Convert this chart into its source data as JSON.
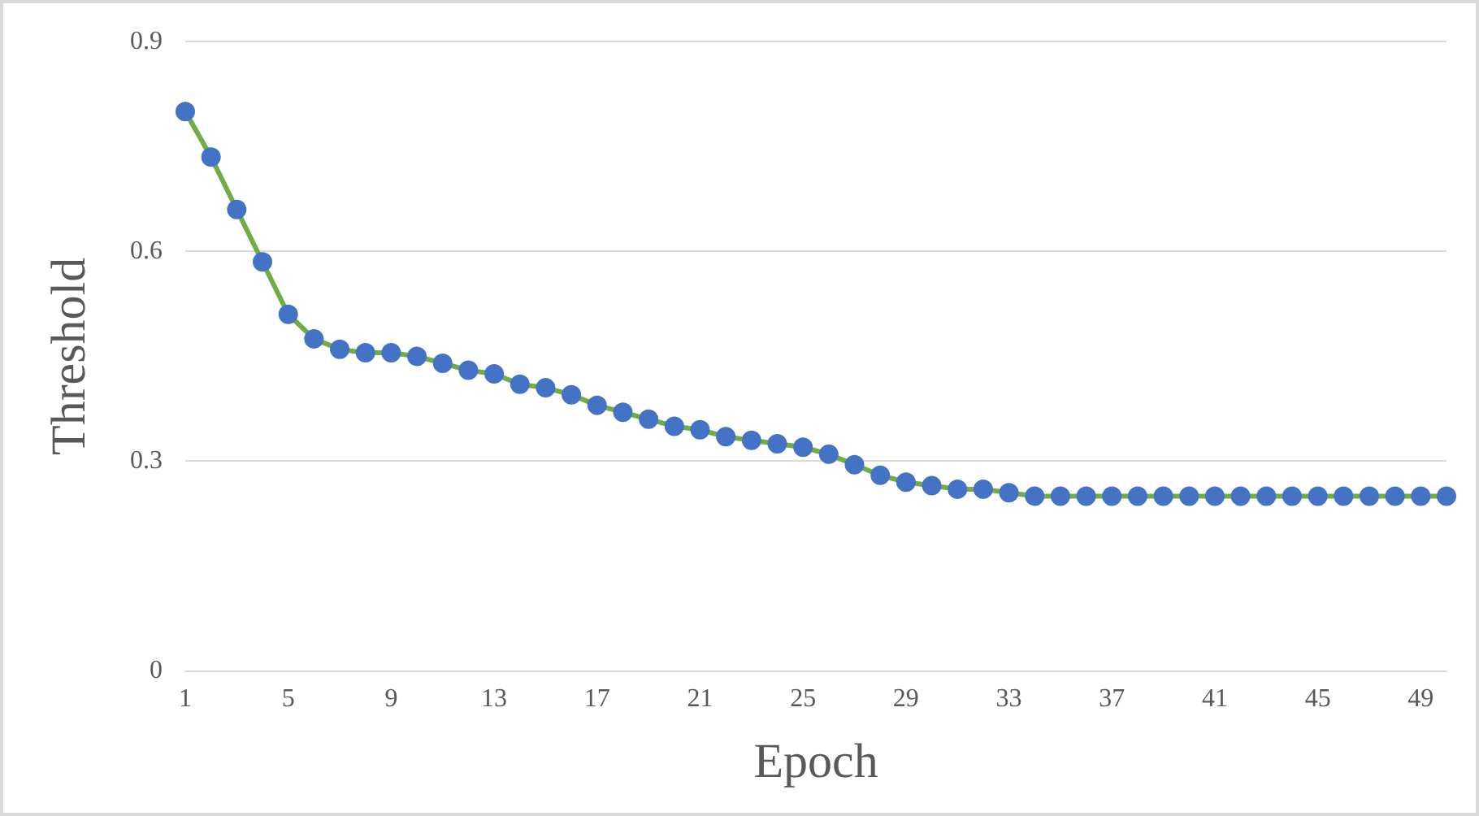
{
  "chart_data": {
    "type": "line",
    "xlabel": "Epoch",
    "ylabel": "Threshold",
    "categories": [
      "1",
      null,
      null,
      null,
      "5",
      null,
      null,
      null,
      "9",
      null,
      null,
      null,
      "13",
      null,
      null,
      null,
      "17",
      null,
      null,
      null,
      "21",
      null,
      null,
      null,
      "25",
      null,
      null,
      null,
      "29",
      null,
      null,
      null,
      "33",
      null,
      null,
      null,
      "37",
      null,
      null,
      null,
      "41",
      null,
      null,
      null,
      "45",
      null,
      null,
      null,
      "49",
      null
    ],
    "series": [
      {
        "color": "#70ad47",
        "colors": [
          "#4472c4",
          "#4472c4",
          "#4472c4",
          "#4472c4",
          "#4472c4",
          "#4472c4",
          "#4472c4",
          "#4472c4",
          "#4472c4",
          "#4472c4",
          "#4472c4",
          "#4472c4",
          "#4472c4",
          "#4472c4",
          "#4472c4",
          "#4472c4",
          "#4472c4",
          "#4472c4",
          "#4472c4",
          "#4472c4",
          "#4472c4",
          "#4472c4",
          "#4472c4",
          "#4472c4",
          "#4472c4",
          "#4472c4",
          "#4472c4",
          "#4472c4",
          "#4472c4",
          "#4472c4",
          "#4472c4",
          "#4472c4",
          "#4472c4",
          "#4472c4",
          "#4472c4",
          "#4472c4",
          "#4472c4",
          "#4472c4",
          "#4472c4",
          "#4472c4",
          "#4472c4",
          "#4472c4",
          "#4472c4",
          "#4472c4",
          "#4472c4",
          "#4472c4",
          "#4472c4",
          "#4472c4",
          "#4472c4",
          "#4472c4"
        ],
        "values": [
          0.8,
          0.735,
          0.66,
          0.585,
          0.51,
          0.475,
          0.46,
          0.455,
          0.455,
          0.45,
          0.44,
          0.43,
          0.425,
          0.41,
          0.405,
          0.395,
          0.38,
          0.37,
          0.36,
          0.35,
          0.345,
          0.335,
          0.33,
          0.325,
          0.32,
          0.31,
          0.295,
          0.28,
          0.27,
          0.265,
          0.26,
          0.26,
          0.255,
          0.25,
          0.25,
          0.25,
          0.25,
          0.25,
          0.25,
          0.25,
          0.25,
          0.25,
          0.25,
          0.25,
          0.25,
          0.25,
          0.25,
          0.25,
          0.25,
          0.25
        ]
      }
    ],
    "ylim": [
      0,
      0.9
    ],
    "yticks": [
      0,
      0.3,
      0.6,
      0.9
    ],
    "grid": "y",
    "legend": false,
    "marker": "circle",
    "line_style": "solid"
  }
}
